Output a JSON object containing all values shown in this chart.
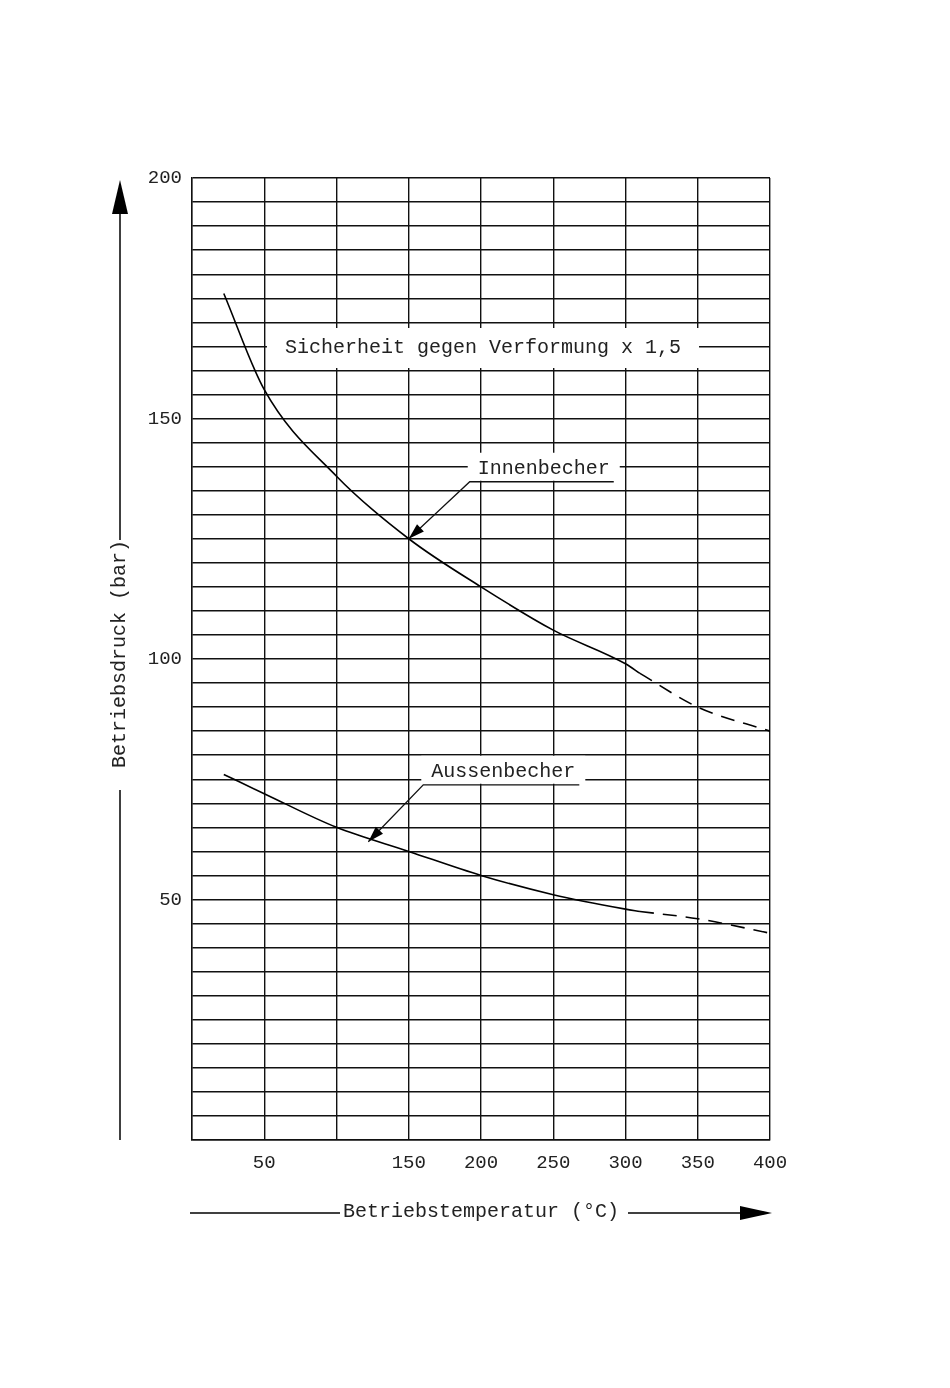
{
  "chart_data": {
    "type": "line",
    "xlabel": "Betriebstemperatur (°C)",
    "ylabel": "Betriebsdruck (bar)",
    "xlim": [
      0,
      400
    ],
    "ylim": [
      0,
      200
    ],
    "xticks": [
      {
        "value": 0,
        "label": null
      },
      50,
      {
        "value": 100,
        "label": null
      },
      150,
      200,
      250,
      300,
      350,
      400
    ],
    "yticks": [
      {
        "value": 0,
        "label": null
      },
      {
        "value": 5,
        "label": null
      },
      {
        "value": 10,
        "label": null
      },
      {
        "value": 15,
        "label": null
      },
      {
        "value": 20,
        "label": null
      },
      {
        "value": 25,
        "label": null
      },
      {
        "value": 30,
        "label": null
      },
      {
        "value": 35,
        "label": null
      },
      {
        "value": 40,
        "label": null
      },
      {
        "value": 45,
        "label": null
      },
      50,
      {
        "value": 55,
        "label": null
      },
      {
        "value": 60,
        "label": null
      },
      {
        "value": 65,
        "label": null
      },
      {
        "value": 70,
        "label": null
      },
      {
        "value": 75,
        "label": null
      },
      {
        "value": 80,
        "label": null
      },
      {
        "value": 85,
        "label": null
      },
      {
        "value": 90,
        "label": null
      },
      {
        "value": 95,
        "label": null
      },
      100,
      {
        "value": 105,
        "label": null
      },
      {
        "value": 110,
        "label": null
      },
      {
        "value": 115,
        "label": null
      },
      {
        "value": 120,
        "label": null
      },
      {
        "value": 125,
        "label": null
      },
      {
        "value": 130,
        "label": null
      },
      {
        "value": 135,
        "label": null
      },
      {
        "value": 140,
        "label": null
      },
      {
        "value": 145,
        "label": null
      },
      150,
      {
        "value": 155,
        "label": null
      },
      {
        "value": 160,
        "label": null
      },
      {
        "value": 165,
        "label": null
      },
      {
        "value": 170,
        "label": null
      },
      {
        "value": 175,
        "label": null
      },
      {
        "value": 180,
        "label": null
      },
      {
        "value": 185,
        "label": null
      },
      {
        "value": 190,
        "label": null
      },
      {
        "value": 195,
        "label": null
      },
      200
    ],
    "grid": true,
    "legend": false,
    "marker": "none",
    "series": [
      {
        "color": "#000000",
        "line_style": "solid",
        "x": [
          22,
          50,
          100,
          150,
          200,
          250,
          300,
          310
        ],
        "values": [
          176,
          156,
          138,
          125,
          115,
          106,
          99,
          97
        ]
      },
      {
        "color": "#000000",
        "line_style": "dashed",
        "x": [
          310,
          350,
          400
        ],
        "values": [
          97,
          90,
          85
        ]
      },
      {
        "color": "#000000",
        "line_style": "solid",
        "x": [
          22,
          50,
          100,
          150,
          200,
          250,
          300,
          310
        ],
        "values": [
          76,
          72,
          65,
          60,
          55,
          51,
          48,
          47.5
        ]
      },
      {
        "color": "#000000",
        "line_style": "dashed",
        "x": [
          310,
          350,
          400
        ],
        "values": [
          47.5,
          46,
          43
        ]
      }
    ],
    "annotations": [
      {
        "text": "Innenbecher",
        "x": 150,
        "y": 125
      },
      {
        "text": "Aussenbecher",
        "x": 122,
        "y": 62
      },
      "Sicherheit gegen Verformung x 1,5"
    ]
  }
}
